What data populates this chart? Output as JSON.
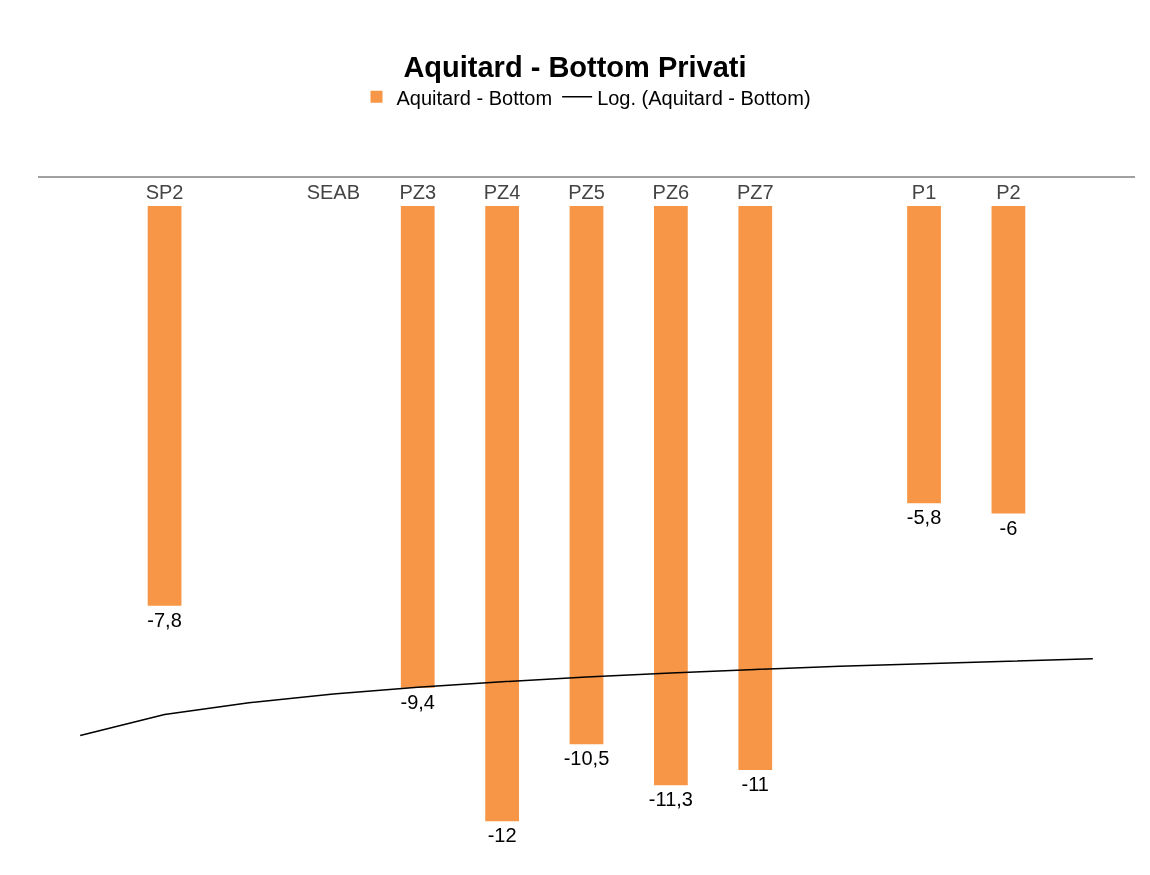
{
  "chart_data": {
    "type": "bar",
    "title": "Aquitard - Bottom Privati",
    "categories": [
      null,
      "SP2",
      null,
      "SEAB",
      "PZ3",
      "PZ4",
      "PZ5",
      "PZ6",
      "PZ7",
      null,
      "P1",
      "P2",
      null
    ],
    "series": [
      {
        "name": "Aquitard - Bottom",
        "color": "#f79646",
        "values": [
          null,
          -7.8,
          null,
          null,
          -9.4,
          -12,
          -10.5,
          -11.3,
          -11,
          null,
          -5.8,
          -6,
          null
        ],
        "value_labels": [
          null,
          "-7,8",
          null,
          null,
          "-9,4",
          "-12",
          "-10,5",
          "-11,3",
          "-11",
          null,
          "-5,8",
          "-6",
          null
        ]
      },
      {
        "name": "Log. (Aquitard - Bottom)",
        "type": "line",
        "color": "#000000",
        "line_style": "solid",
        "values": [
          -10.33,
          -9.92,
          -9.69,
          -9.52,
          -9.39,
          -9.28,
          -9.19,
          -9.11,
          -9.04,
          -8.98,
          -8.93,
          -8.88,
          -8.83
        ]
      }
    ],
    "tick_labels": "x",
    "grid": false,
    "legend": "top",
    "marker": "none"
  }
}
